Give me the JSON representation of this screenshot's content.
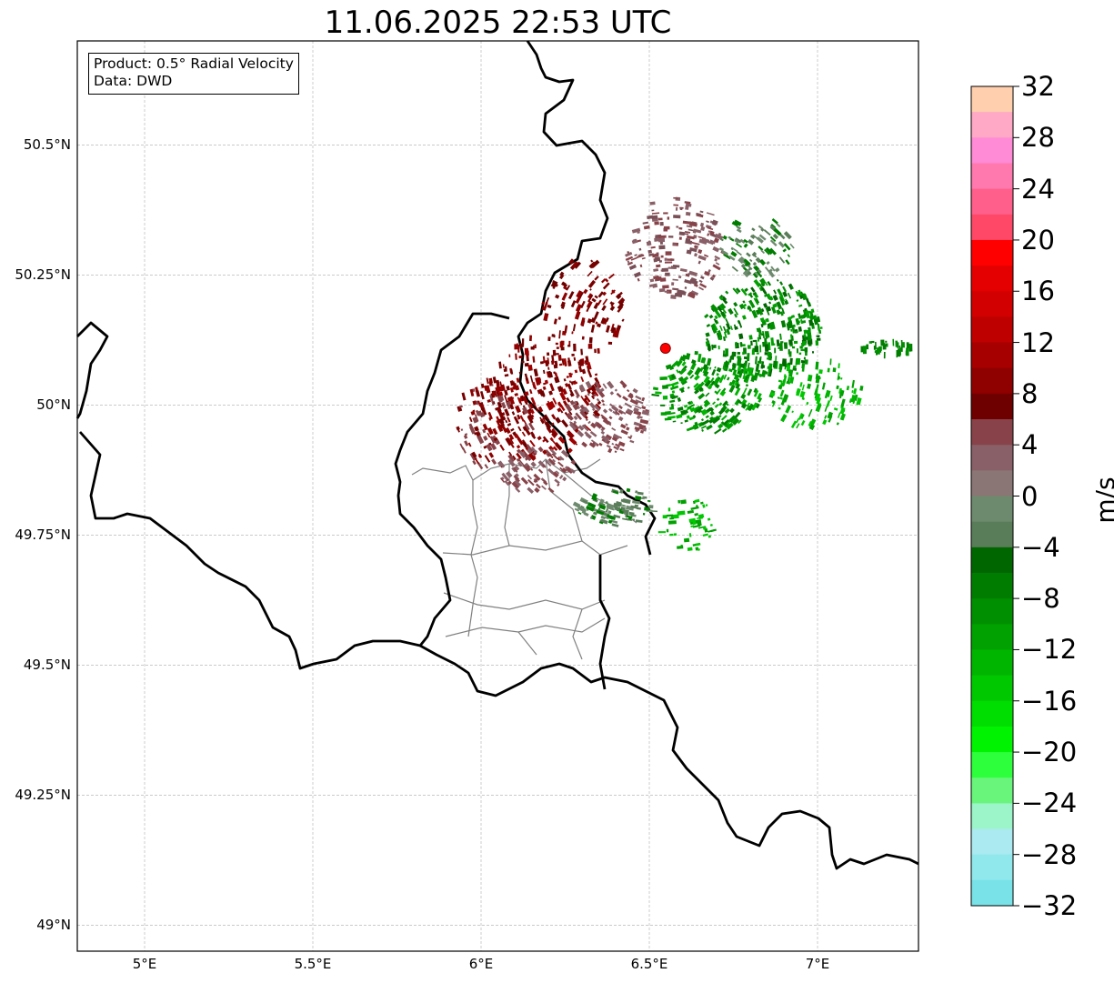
{
  "title": "11.06.2025 22:53 UTC",
  "info_box": {
    "product": "Product: 0.5° Radial Velocity",
    "data": "Data: DWD"
  },
  "axes": {
    "lon_ticks": [
      {
        "value": 5.0,
        "label": "5°E"
      },
      {
        "value": 5.5,
        "label": "5.5°E"
      },
      {
        "value": 6.0,
        "label": "6°E"
      },
      {
        "value": 6.5,
        "label": "6.5°E"
      },
      {
        "value": 7.0,
        "label": "7°E"
      }
    ],
    "lat_ticks": [
      {
        "value": 49.0,
        "label": "49°N"
      },
      {
        "value": 49.25,
        "label": "49.25°N"
      },
      {
        "value": 49.5,
        "label": "49.5°N"
      },
      {
        "value": 49.75,
        "label": "49.75°N"
      },
      {
        "value": 50.0,
        "label": "50°N"
      },
      {
        "value": 50.25,
        "label": "50.25°N"
      },
      {
        "value": 50.5,
        "label": "50.5°N"
      }
    ],
    "extent": {
      "lon_min": 4.8,
      "lon_max": 7.3,
      "lat_min": 48.95,
      "lat_max": 50.7
    },
    "grid": true
  },
  "radar_site": {
    "lon": 6.548,
    "lat": 50.109,
    "color": "#ff0000"
  },
  "colorbar": {
    "unit": "m/s",
    "min": -32,
    "max": 32,
    "tick_labels": [
      "32",
      "28",
      "24",
      "20",
      "16",
      "12",
      "8",
      "4",
      "0",
      "−4",
      "−8",
      "−12",
      "−16",
      "−20",
      "−24",
      "−28",
      "−32"
    ],
    "colors_top_to_bottom": [
      "#ffcfae",
      "#ffa9c6",
      "#ff8ad6",
      "#ff78ae",
      "#ff5f8a",
      "#ff4868",
      "#ff0000",
      "#e40000",
      "#d20000",
      "#bf0000",
      "#a60000",
      "#8f0000",
      "#6e0000",
      "#874349",
      "#8a6068",
      "#8a7675",
      "#6e8a6e",
      "#5a7d59",
      "#006600",
      "#007d00",
      "#008f00",
      "#00a100",
      "#00b500",
      "#00c800",
      "#00dd00",
      "#00f300",
      "#2dff3c",
      "#69f57b",
      "#9bf5c8",
      "#aaeaf0",
      "#90e7ec",
      "#78e2e8"
    ]
  }
}
